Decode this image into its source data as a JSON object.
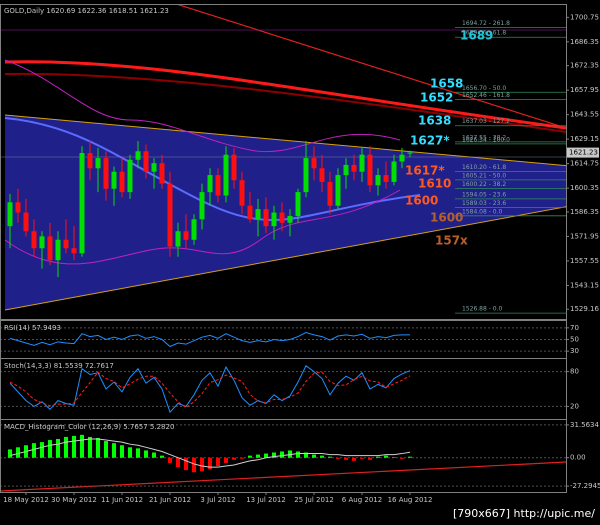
{
  "chart_data": [
    {
      "type": "candlestick",
      "title": "GOLD,Daily  1620.69 1622.36 1618.51 1621.23",
      "categories": [
        null,
        null,
        "18 May 2012",
        null,
        null,
        null,
        null,
        null,
        "30 May 2012",
        null,
        null,
        null,
        null,
        null,
        "11 Jun 2012",
        null,
        null,
        null,
        null,
        null,
        "21 Jun 2012",
        null,
        null,
        null,
        null,
        null,
        "3 Jul 2012",
        null,
        null,
        null,
        null,
        null,
        "13 Jul 2012",
        null,
        null,
        null,
        null,
        null,
        "25 Jul 2012",
        null,
        null,
        null,
        null,
        null,
        "6 Aug 2012",
        null,
        null,
        null,
        null,
        null,
        "16 Aug 2012"
      ],
      "ohlc": [
        [
          1578,
          1597,
          1565,
          1592
        ],
        [
          1592,
          1600,
          1580,
          1586
        ],
        [
          1586,
          1594,
          1572,
          1575
        ],
        [
          1575,
          1582,
          1560,
          1565
        ],
        [
          1565,
          1575,
          1553,
          1572
        ],
        [
          1572,
          1580,
          1555,
          1558
        ],
        [
          1558,
          1575,
          1548,
          1570
        ],
        [
          1570,
          1582,
          1562,
          1565
        ],
        [
          1565,
          1578,
          1558,
          1562
        ],
        [
          1562,
          1625,
          1560,
          1621
        ],
        [
          1621,
          1628,
          1605,
          1612
        ],
        [
          1612,
          1624,
          1598,
          1618
        ],
        [
          1618,
          1622,
          1593,
          1600
        ],
        [
          1600,
          1613,
          1590,
          1610
        ],
        [
          1610,
          1618,
          1595,
          1598
        ],
        [
          1598,
          1620,
          1594,
          1617
        ],
        [
          1617,
          1628,
          1612,
          1622
        ],
        [
          1622,
          1626,
          1606,
          1610
        ],
        [
          1610,
          1618,
          1600,
          1615
        ],
        [
          1615,
          1620,
          1600,
          1603
        ],
        [
          1603,
          1610,
          1560,
          1566
        ],
        [
          1566,
          1580,
          1560,
          1575
        ],
        [
          1575,
          1585,
          1565,
          1570
        ],
        [
          1570,
          1585,
          1567,
          1582
        ],
        [
          1582,
          1603,
          1576,
          1598
        ],
        [
          1598,
          1612,
          1590,
          1608
        ],
        [
          1608,
          1612,
          1592,
          1596
        ],
        [
          1596,
          1625,
          1592,
          1620
        ],
        [
          1620,
          1624,
          1600,
          1605
        ],
        [
          1605,
          1610,
          1585,
          1590
        ],
        [
          1590,
          1598,
          1580,
          1582
        ],
        [
          1582,
          1594,
          1572,
          1588
        ],
        [
          1588,
          1595,
          1574,
          1578
        ],
        [
          1578,
          1590,
          1570,
          1586
        ],
        [
          1586,
          1592,
          1575,
          1580
        ],
        [
          1580,
          1588,
          1572,
          1584
        ],
        [
          1584,
          1600,
          1580,
          1598
        ],
        [
          1598,
          1628,
          1595,
          1618
        ],
        [
          1618,
          1625,
          1605,
          1612
        ],
        [
          1612,
          1620,
          1598,
          1604
        ],
        [
          1604,
          1610,
          1585,
          1590
        ],
        [
          1590,
          1612,
          1588,
          1608
        ],
        [
          1608,
          1618,
          1600,
          1614
        ],
        [
          1614,
          1620,
          1605,
          1610
        ],
        [
          1610,
          1624,
          1604,
          1620
        ],
        [
          1620,
          1625,
          1598,
          1602
        ],
        [
          1602,
          1612,
          1596,
          1608
        ],
        [
          1608,
          1616,
          1600,
          1604
        ],
        [
          1604,
          1620,
          1602,
          1616
        ],
        [
          1616,
          1624,
          1612,
          1620
        ],
        [
          1620.69,
          1622.36,
          1618.51,
          1621.23
        ]
      ],
      "up_color": "#00e000",
      "down_color": "#ff1010",
      "ylim": [
        1524,
        1708
      ],
      "yticks": [
        1700.75,
        1686.35,
        1672.35,
        1657.95,
        1643.55,
        1629.15,
        1614.75,
        1600.35,
        1586.35,
        1571.95,
        1557.55,
        1543.15,
        1529.16
      ],
      "levels": [
        {
          "value": 1694.72,
          "label": "1694.72 - 261.8"
        },
        {
          "value": 1689.05,
          "label": "1689.05 - 61.8"
        },
        {
          "value": 1656.7,
          "label": "1656.70 - 50.0"
        },
        {
          "value": 1652.46,
          "label": "1652.46 - 161.8"
        },
        {
          "value": 1637.03,
          "label": "1637.03 - 127.2"
        },
        {
          "value": 1627.55,
          "label": "1627.55 - 38.2"
        },
        {
          "value": 1626.34,
          "label": "1626.34 - 100.0"
        },
        {
          "value": 1610.2,
          "label": "1610.20 - 61.8"
        },
        {
          "value": 1605.21,
          "label": "1605.21 - 50.0"
        },
        {
          "value": 1600.22,
          "label": "1600.22 - 38.2"
        },
        {
          "value": 1594.05,
          "label": "1594.05 - 23.6"
        },
        {
          "value": 1589.03,
          "label": "1589.03 - 23.6"
        },
        {
          "value": 1584.08,
          "label": "1584.08 - 0.0"
        },
        {
          "value": 1526.88,
          "label": "1526.88 - 0.0"
        }
      ],
      "annotations": [
        {
          "text": "1689",
          "color": "#22c4d8"
        },
        {
          "text": "1658",
          "color": "#33ddff"
        },
        {
          "text": "1652",
          "color": "#33ddff"
        },
        {
          "text": "1638",
          "color": "#33ddff"
        },
        {
          "text": "1627*",
          "color": "#33ddff"
        },
        {
          "text": "1617*",
          "color": "#ff5a1e"
        },
        {
          "text": "1610",
          "color": "#ff5a1e"
        },
        {
          "text": "1600",
          "color": "#ff5a1e"
        },
        {
          "text": "1600",
          "color": "#b8602a"
        },
        {
          "text": "157x",
          "color": "#b8602a"
        }
      ]
    },
    {
      "type": "line",
      "title": "RSI(14) 57.9493",
      "series": [
        {
          "color": "#1e90ff",
          "values": [
            52,
            48,
            44,
            40,
            45,
            41,
            46,
            44,
            43,
            60,
            55,
            57,
            50,
            54,
            50,
            56,
            58,
            52,
            55,
            50,
            38,
            44,
            42,
            48,
            54,
            57,
            52,
            60,
            54,
            48,
            45,
            48,
            46,
            50,
            48,
            50,
            55,
            62,
            58,
            55,
            49,
            56,
            58,
            56,
            59,
            52,
            55,
            53,
            57,
            58,
            57.9493
          ]
        }
      ],
      "ylim": [
        20,
        80
      ],
      "yticks": [
        70,
        50,
        30
      ],
      "grid": true
    },
    {
      "type": "line",
      "title": "Stoch(14,3,3) 81.5539 72.7617",
      "series": [
        {
          "color": "#1e90ff",
          "values": [
            60,
            45,
            30,
            20,
            28,
            15,
            30,
            25,
            22,
            85,
            75,
            78,
            50,
            62,
            45,
            70,
            85,
            60,
            70,
            50,
            10,
            25,
            20,
            40,
            65,
            78,
            55,
            88,
            65,
            35,
            22,
            30,
            25,
            40,
            30,
            38,
            62,
            90,
            80,
            68,
            40,
            60,
            72,
            65,
            78,
            50,
            58,
            52,
            68,
            76,
            81.5539
          ]
        },
        {
          "color": "#ff2020",
          "dashed": true,
          "values": [
            62,
            55,
            45,
            32,
            26,
            21,
            24,
            24,
            26,
            44,
            61,
            79,
            68,
            63,
            52,
            59,
            67,
            72,
            72,
            60,
            43,
            28,
            18,
            28,
            42,
            61,
            66,
            74,
            69,
            63,
            41,
            29,
            26,
            32,
            32,
            36,
            43,
            63,
            77,
            79,
            63,
            56,
            57,
            66,
            72,
            64,
            62,
            53,
            59,
            65,
            72.7617
          ]
        }
      ],
      "ylim": [
        0,
        100
      ],
      "yticks": [
        80,
        20
      ],
      "grid": true
    },
    {
      "type": "macd",
      "title": "MACD_Histogram_Color (12,26,9) 5.7657 5.2820",
      "values": [
        8,
        10,
        12,
        14,
        15,
        17,
        18,
        20,
        21,
        22,
        20,
        19,
        16,
        14,
        12,
        10,
        9,
        7,
        5,
        2,
        -5,
        -9,
        -12,
        -14,
        -13,
        -11,
        -8,
        -5,
        -2,
        -1,
        2,
        3,
        4,
        5,
        6,
        7,
        6,
        5,
        3,
        2,
        1,
        -1,
        -2,
        -3,
        -1,
        -2,
        1,
        2,
        0.5,
        -1,
        1
      ],
      "up_color": "#00ff00",
      "down_color": "#ff0000",
      "series": [
        {
          "color": "#d0d0d0",
          "values": [
            2,
            4,
            6,
            8,
            10,
            12,
            13,
            15,
            16,
            17,
            18,
            18,
            17,
            16,
            15,
            13,
            12,
            10,
            8,
            6,
            3,
            0,
            -3,
            -6,
            -8,
            -9,
            -9,
            -8,
            -7,
            -5,
            -3,
            -2,
            0,
            1,
            2,
            3,
            4,
            4,
            4,
            4,
            3,
            3,
            2,
            2,
            2,
            2,
            2,
            3,
            3,
            4,
            5.282
          ]
        }
      ],
      "ylim": [
        -32,
        35.3
      ],
      "yticks": [
        31.5634,
        {
          "value": 0,
          "label": "0.00"
        },
        -27.2945
      ],
      "grid": true
    }
  ],
  "footer": "[790x667] http://upic.me/"
}
